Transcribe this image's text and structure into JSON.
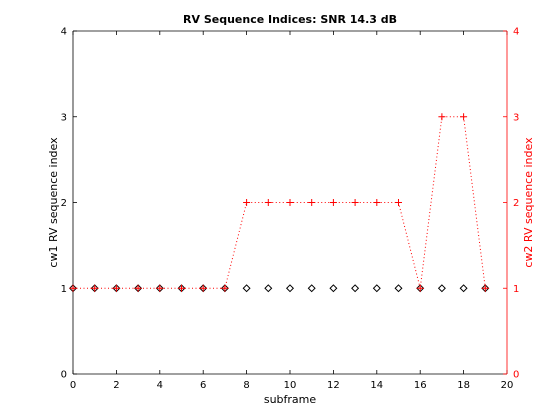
{
  "chart_data": {
    "type": "line",
    "title": "RV Sequence Indices: SNR 14.3 dB",
    "xlabel": "subframe",
    "ylabel_left": "cw1  RV sequence index",
    "ylabel_right": "cw2  RV sequence index",
    "xlim": [
      0,
      20
    ],
    "ylim": [
      0,
      4
    ],
    "xticks": [
      0,
      2,
      4,
      6,
      8,
      10,
      12,
      14,
      16,
      18,
      20
    ],
    "yticks": [
      0,
      1,
      2,
      3,
      4
    ],
    "grid": false,
    "x": [
      0,
      1,
      2,
      3,
      4,
      5,
      6,
      7,
      8,
      9,
      10,
      11,
      12,
      13,
      14,
      15,
      16,
      17,
      18,
      19
    ],
    "series": [
      {
        "name": "cw1",
        "axis": "left",
        "marker": "diamond",
        "line": "none",
        "color": "#000000",
        "values": [
          1,
          1,
          1,
          1,
          1,
          1,
          1,
          1,
          1,
          1,
          1,
          1,
          1,
          1,
          1,
          1,
          1,
          1,
          1,
          1
        ]
      },
      {
        "name": "cw2",
        "axis": "right",
        "marker": "plus",
        "line": "dotted",
        "color": "#ff0000",
        "values": [
          1,
          1,
          1,
          1,
          1,
          1,
          1,
          1,
          2,
          2,
          2,
          2,
          2,
          2,
          2,
          2,
          1,
          3,
          3,
          1
        ]
      }
    ]
  }
}
